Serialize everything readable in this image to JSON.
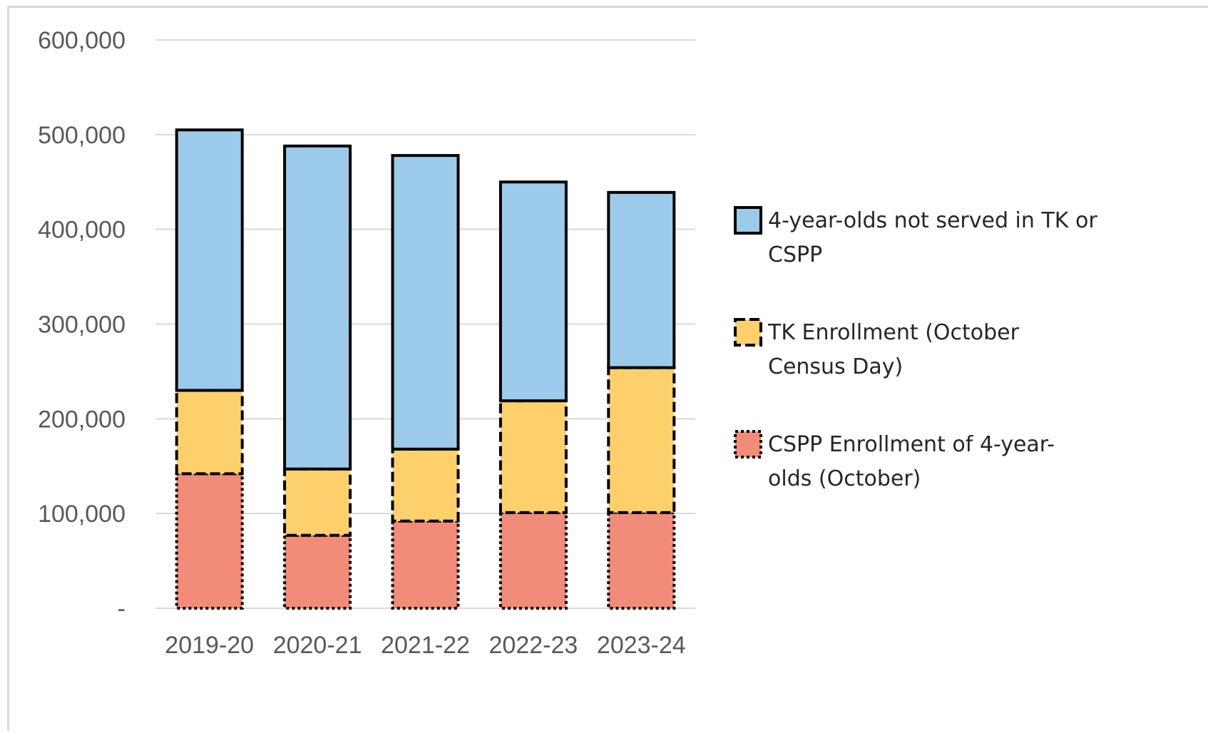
{
  "chart_data": {
    "type": "bar",
    "stacked": true,
    "title": "",
    "xlabel": "",
    "ylabel": "",
    "ylim": [
      0,
      600000
    ],
    "yticks": [
      0,
      100000,
      200000,
      300000,
      400000,
      500000,
      600000
    ],
    "ytick_labels": [
      "-",
      "100,000",
      "200,000",
      "300,000",
      "400,000",
      "500,000",
      "600,000"
    ],
    "grid": true,
    "legend_position": "right",
    "categories": [
      "2019-20",
      "2020-21",
      "2021-22",
      "2022-23",
      "2023-24"
    ],
    "series": [
      {
        "name": "CSPP Enrollment of 4-year-olds (October)",
        "legend_lines": [
          "CSPP Enrollment of 4-year-",
          "olds (October)"
        ],
        "values": [
          142000,
          77000,
          92000,
          101000,
          101000
        ],
        "color": "#f08c78",
        "border": "dotted"
      },
      {
        "name": "TK Enrollment (October Census Day)",
        "legend_lines": [
          "TK Enrollment (October",
          "Census Day)"
        ],
        "values": [
          88000,
          70000,
          76000,
          118000,
          153000
        ],
        "color": "#fed06b",
        "border": "dashed"
      },
      {
        "name": "4-year-olds not served in TK or CSPP",
        "legend_lines": [
          "4-year-olds not served in TK or",
          "CSPP"
        ],
        "values": [
          275000,
          341000,
          310000,
          231000,
          185000
        ],
        "color": "#9ccaeb",
        "border": "solid"
      }
    ]
  }
}
